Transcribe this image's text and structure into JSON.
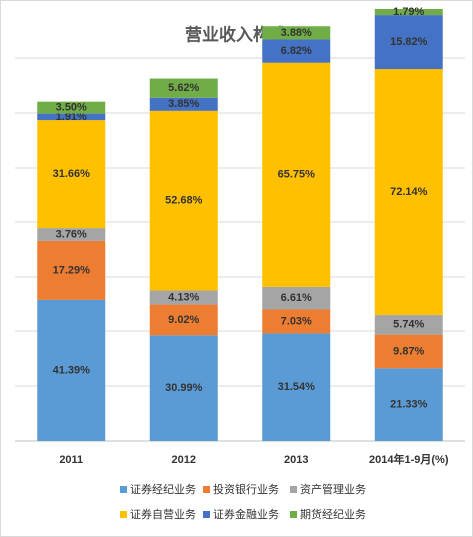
{
  "chart_data": {
    "type": "stacked_bar",
    "title": "营业收入构成",
    "categories": [
      "2011",
      "2012",
      "2013",
      "2014年1-9月(%)"
    ],
    "series": [
      {
        "name": "证券经纪业务",
        "color": "#5b9bd5",
        "values": [
          41.39,
          30.99,
          31.54,
          21.33
        ],
        "value_labels": [
          "41.39%",
          "30.99%",
          "31.54%",
          "21.33%"
        ]
      },
      {
        "name": "投资银行业务",
        "color": "#ed7d31",
        "values": [
          17.29,
          9.02,
          7.03,
          9.87
        ],
        "value_labels": [
          "17.29%",
          "9.02%",
          "7.03%",
          "9.87%"
        ]
      },
      {
        "name": "资产管理业务",
        "color": "#a5a5a5",
        "values": [
          3.76,
          4.13,
          6.61,
          5.74
        ],
        "value_labels": [
          "3.76%",
          "4.13%",
          "6.61%",
          "5.74%"
        ]
      },
      {
        "name": "证券自营业务",
        "color": "#ffc000",
        "values": [
          31.66,
          52.68,
          65.75,
          72.14
        ],
        "value_labels": [
          "31.66%",
          "52.68%",
          "65.75%",
          "72.14%"
        ]
      },
      {
        "name": "证券金融业务",
        "color": "#4472c4",
        "values": [
          1.91,
          3.85,
          6.82,
          15.82
        ],
        "value_labels": [
          "1.91%",
          "3.85%",
          "6.82%",
          "15.82%"
        ]
      },
      {
        "name": "期货经纪业务",
        "color": "#70ad47",
        "values": [
          3.5,
          5.62,
          3.88,
          1.79
        ],
        "value_labels": [
          "3.50%",
          "5.62%",
          "3.88%",
          "1.79%"
        ]
      }
    ]
  }
}
